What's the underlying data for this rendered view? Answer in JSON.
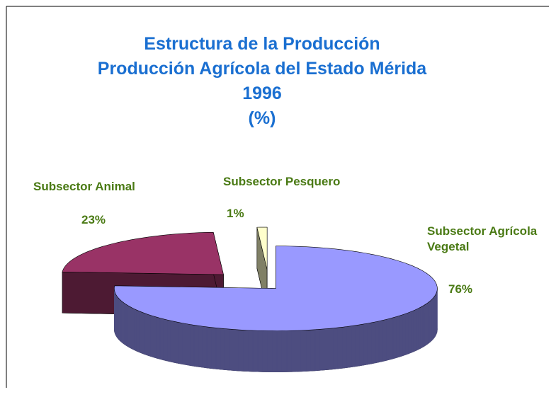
{
  "chart_data": {
    "type": "pie",
    "title": [
      "Estructura de la Producción",
      "Producción Agrícola del Estado Mérida",
      "1996",
      "(%)"
    ],
    "categories": [
      "Subsector Animal",
      "Subsector Pesquero",
      "Subsector Agrícola Vegetal"
    ],
    "values": [
      23,
      1,
      76
    ],
    "value_labels": [
      "23%",
      "1%",
      "76%"
    ],
    "colors": [
      "#993366",
      "#ffffcc",
      "#9999ff"
    ]
  }
}
